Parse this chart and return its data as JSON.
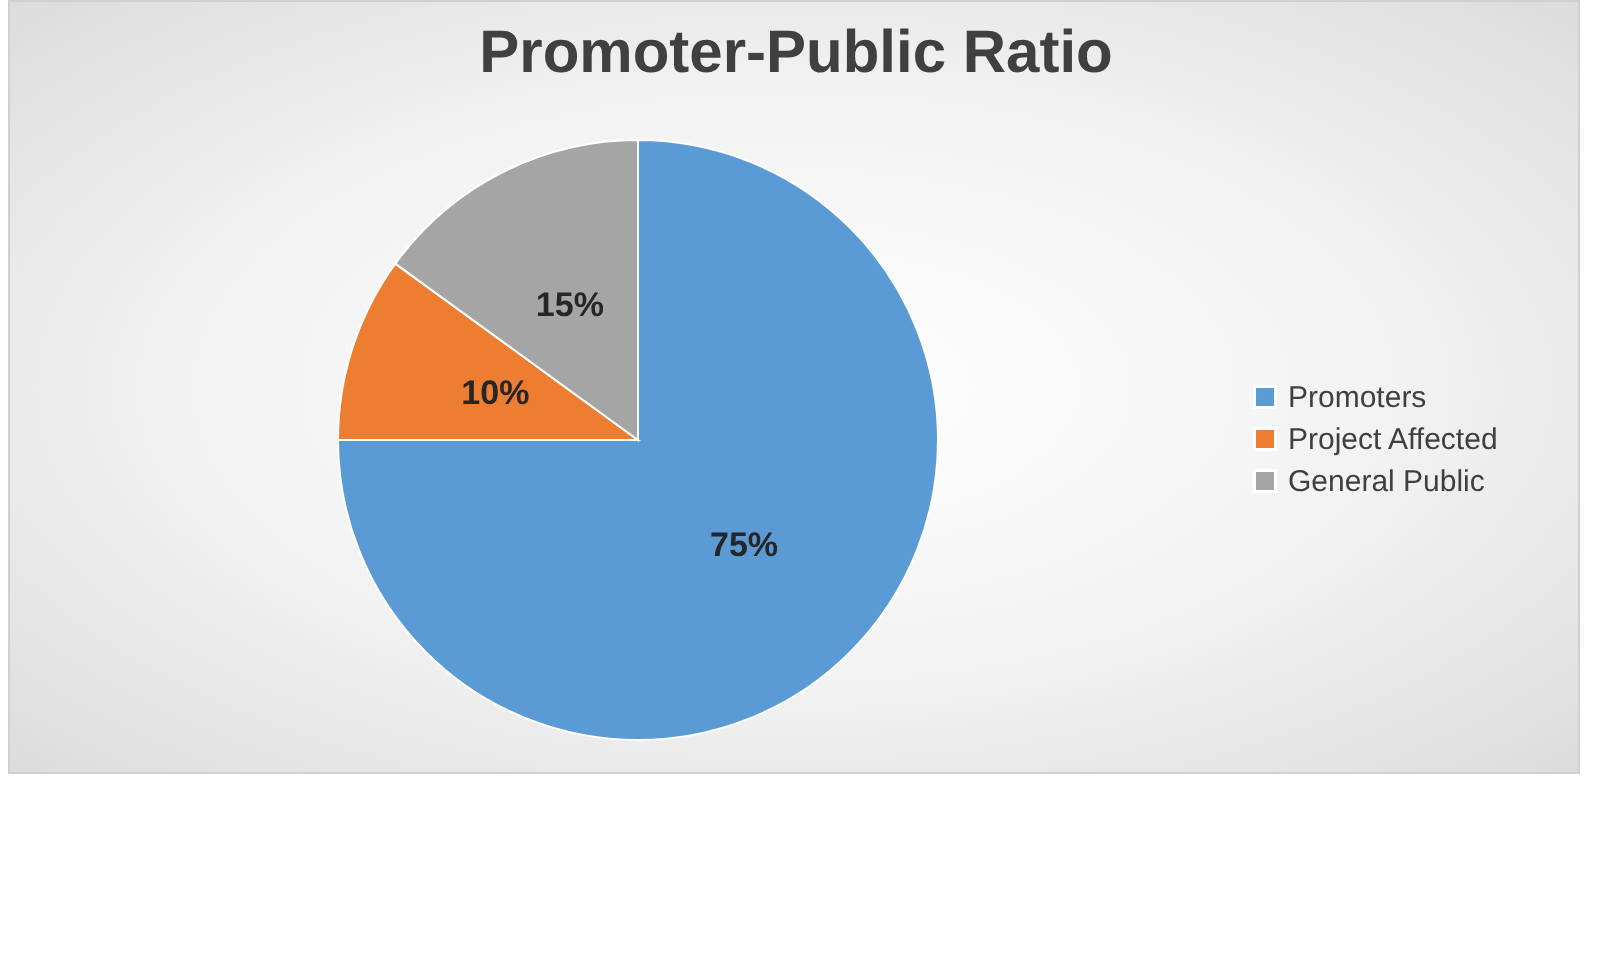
{
  "chart_data": {
    "type": "pie",
    "title": "Promoter-Public Ratio",
    "categories": [
      "Promoters",
      "Project Affected",
      "General Public"
    ],
    "values": [
      75,
      10,
      15
    ],
    "colors": [
      "#5b9bd5",
      "#ed7d31",
      "#a5a5a5"
    ],
    "value_labels": [
      "75%",
      "10%",
      "15%"
    ],
    "legend": "right"
  }
}
